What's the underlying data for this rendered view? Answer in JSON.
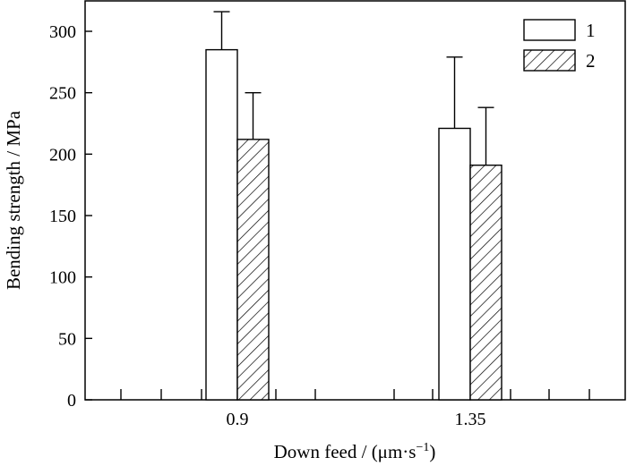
{
  "chart_data": {
    "type": "bar",
    "title": "",
    "xlabel": "Down feed / (μm·s",
    "xlabel_sup": "−1",
    "xlabel_close": ")",
    "ylabel": "Bending strength / MPa",
    "categories": [
      "0.9",
      "1.35"
    ],
    "ylim": [
      0,
      325
    ],
    "yticks": [
      0,
      50,
      100,
      150,
      200,
      250,
      300
    ],
    "grid": false,
    "legend_position": "top-right",
    "series": [
      {
        "name": "1",
        "pattern": "solid-white",
        "values": [
          285,
          221
        ],
        "error_upper": [
          316,
          279
        ]
      },
      {
        "name": "2",
        "pattern": "diagonal-hatch",
        "values": [
          212,
          191
        ],
        "error_upper": [
          250,
          238
        ]
      }
    ]
  }
}
